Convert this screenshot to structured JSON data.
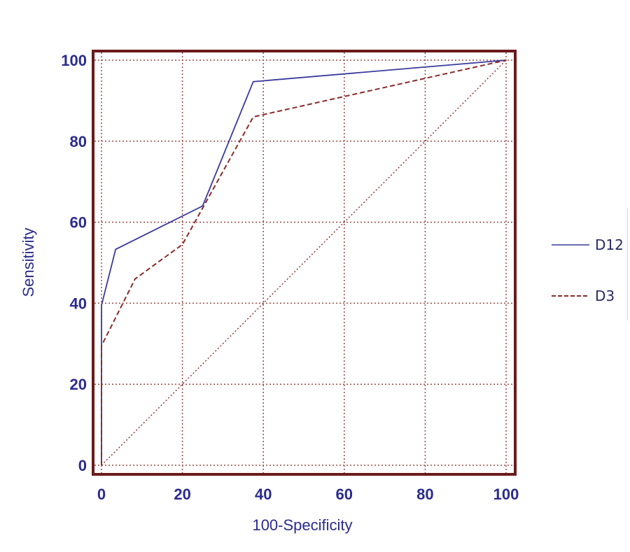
{
  "chart_data": {
    "type": "line",
    "xlabel": "100-Specificity",
    "ylabel": "Sensitivity",
    "xlim": [
      0,
      100
    ],
    "ylim": [
      0,
      100
    ],
    "xticks": [
      0,
      20,
      40,
      60,
      80,
      100
    ],
    "yticks": [
      0,
      20,
      40,
      60,
      80,
      100
    ],
    "grid": true,
    "legend_position": "right",
    "series": [
      {
        "name": "D12",
        "style": "solid",
        "color": "#3a3a9e",
        "x": [
          0,
          0,
          3.5,
          25,
          37.5,
          100
        ],
        "y": [
          0,
          39.5,
          53.3,
          64,
          94.7,
          100
        ]
      },
      {
        "name": "D3",
        "style": "dashed",
        "color": "#8b2a2a",
        "x": [
          0,
          0,
          8.3,
          20,
          37.5,
          100
        ],
        "y": [
          0,
          29.5,
          46,
          54.5,
          86,
          100
        ]
      },
      {
        "name": "",
        "style": "dotted",
        "color": "#8b3a3a",
        "x": [
          0,
          100
        ],
        "y": [
          0,
          100
        ]
      }
    ]
  },
  "colors": {
    "frame": "#6b1b1b",
    "grid": "#9a4a4a",
    "tick_text": "#2b2b8f",
    "axis_title": "#2b2b8f"
  }
}
